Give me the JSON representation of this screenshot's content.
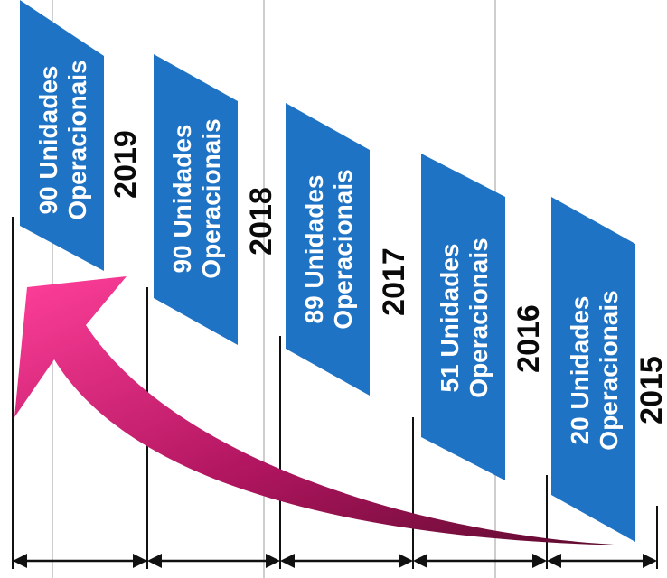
{
  "timeline": {
    "items": [
      {
        "year": "2019",
        "line1": "90 Unidades",
        "line2": "Operacionais"
      },
      {
        "year": "2018",
        "line1": "90 Unidades",
        "line2": "Operacionais"
      },
      {
        "year": "2017",
        "line1": "89 Unidades",
        "line2": "Operacionais"
      },
      {
        "year": "2016",
        "line1": "51 Unidades",
        "line2": "Operacionais"
      },
      {
        "year": "2015",
        "line1": "20 Unidades",
        "line2": "Operacionais"
      }
    ]
  },
  "colors": {
    "banner": "#1f73c4",
    "arrow_dark": "#7a0f3f",
    "arrow_light": "#ff3f9a"
  }
}
